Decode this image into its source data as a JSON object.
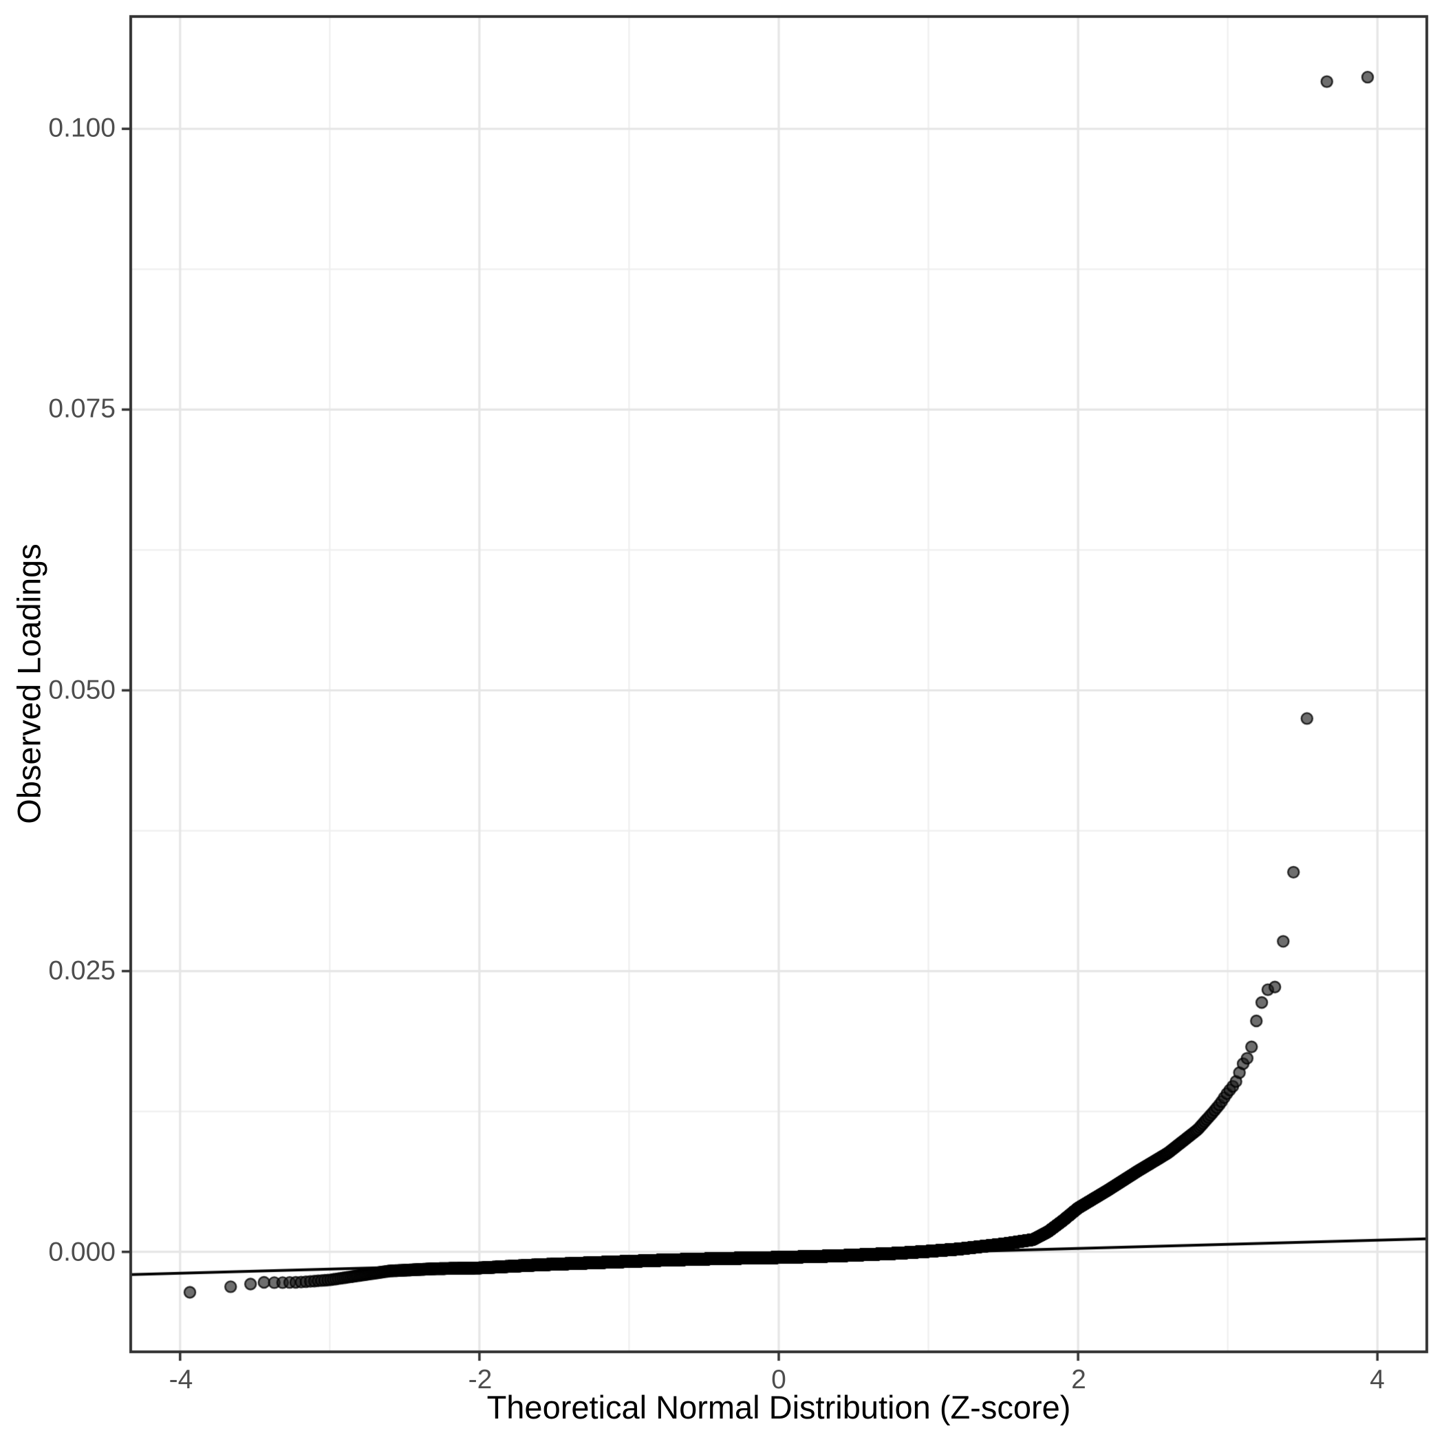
{
  "chart_data": {
    "type": "scatter",
    "subtype": "qq-plot",
    "title": "",
    "xlabel": "Theoretical Normal Distribution (Z-score)",
    "ylabel": "Observed Loadings",
    "x_range": [
      -4.33,
      4.33
    ],
    "y_range": [
      -0.0089,
      0.11
    ],
    "x_ticks": [
      {
        "value": -4,
        "label": "-4"
      },
      {
        "value": -2,
        "label": "-2"
      },
      {
        "value": 0,
        "label": "0"
      },
      {
        "value": 2,
        "label": "2"
      },
      {
        "value": 4,
        "label": "4"
      }
    ],
    "x_minor_ticks": [
      -3,
      -1,
      1,
      3
    ],
    "y_ticks": [
      {
        "value": 0.0,
        "label": "0.000"
      },
      {
        "value": 0.025,
        "label": "0.025"
      },
      {
        "value": 0.05,
        "label": "0.050"
      },
      {
        "value": 0.075,
        "label": "0.075"
      },
      {
        "value": 0.1,
        "label": "0.100"
      }
    ],
    "y_minor_ticks": [
      0.0125,
      0.0375,
      0.0625,
      0.0875
    ],
    "grid": true,
    "legend_position": "none",
    "n_points": 12000,
    "point_spacing": "normal-quantile order statistics of n_points over curve_anchors",
    "reference_line": {
      "slope": 0.000367,
      "intercept": -0.00043
    },
    "curve_anchors": [
      [
        -3.93,
        -0.0036
      ],
      [
        -3.66,
        -0.0031
      ],
      [
        -3.52,
        -0.00285
      ],
      [
        -3.43,
        -0.0027
      ],
      [
        -3.35,
        -0.00275
      ],
      [
        -3.2,
        -0.0027
      ],
      [
        -3.0,
        -0.0025
      ],
      [
        -2.8,
        -0.0021
      ],
      [
        -2.6,
        -0.0017
      ],
      [
        -2.3,
        -0.0015
      ],
      [
        -2.0,
        -0.00143
      ],
      [
        -1.6,
        -0.00115
      ],
      [
        -1.2,
        -0.00095
      ],
      [
        -0.8,
        -0.00075
      ],
      [
        -0.4,
        -0.0006
      ],
      [
        0.0,
        -0.0005
      ],
      [
        0.4,
        -0.00035
      ],
      [
        0.8,
        -0.00012
      ],
      [
        1.0,
        5e-05
      ],
      [
        1.2,
        0.00025
      ],
      [
        1.5,
        0.0007
      ],
      [
        1.7,
        0.0011
      ],
      [
        1.8,
        0.0018
      ],
      [
        1.9,
        0.0028
      ],
      [
        2.0,
        0.0039
      ],
      [
        2.2,
        0.0055
      ],
      [
        2.4,
        0.0072
      ],
      [
        2.6,
        0.0088
      ],
      [
        2.8,
        0.0109
      ],
      [
        2.9,
        0.0124
      ],
      [
        2.95,
        0.0132
      ],
      [
        3.0,
        0.0142
      ],
      [
        3.05,
        0.015
      ],
      [
        3.1,
        0.0167
      ],
      [
        3.15,
        0.0176
      ],
      [
        3.19,
        0.0205
      ],
      [
        3.22,
        0.022
      ],
      [
        3.27,
        0.0234
      ],
      [
        3.32,
        0.0236
      ],
      [
        3.43,
        0.0324
      ],
      [
        3.53,
        0.0476
      ],
      [
        3.66,
        0.1042
      ],
      [
        3.93,
        0.1046
      ]
    ],
    "outlier_points": [
      [
        3.43,
        0.0324
      ],
      [
        3.53,
        0.0476
      ],
      [
        3.66,
        0.1042
      ],
      [
        3.93,
        0.1046
      ]
    ],
    "colors": {
      "panel_background": "#ffffff",
      "grid_major": "#e6e6e6",
      "grid_minor": "#efefef",
      "panel_border": "#333333",
      "tick_mark": "#333333",
      "tick_label": "#4d4d4d",
      "axis_title": "#000000",
      "point_fill": "rgba(26,26,26,0.63)",
      "point_stroke": "rgba(0,0,0,0.80)",
      "reference_line": "#000000"
    }
  }
}
